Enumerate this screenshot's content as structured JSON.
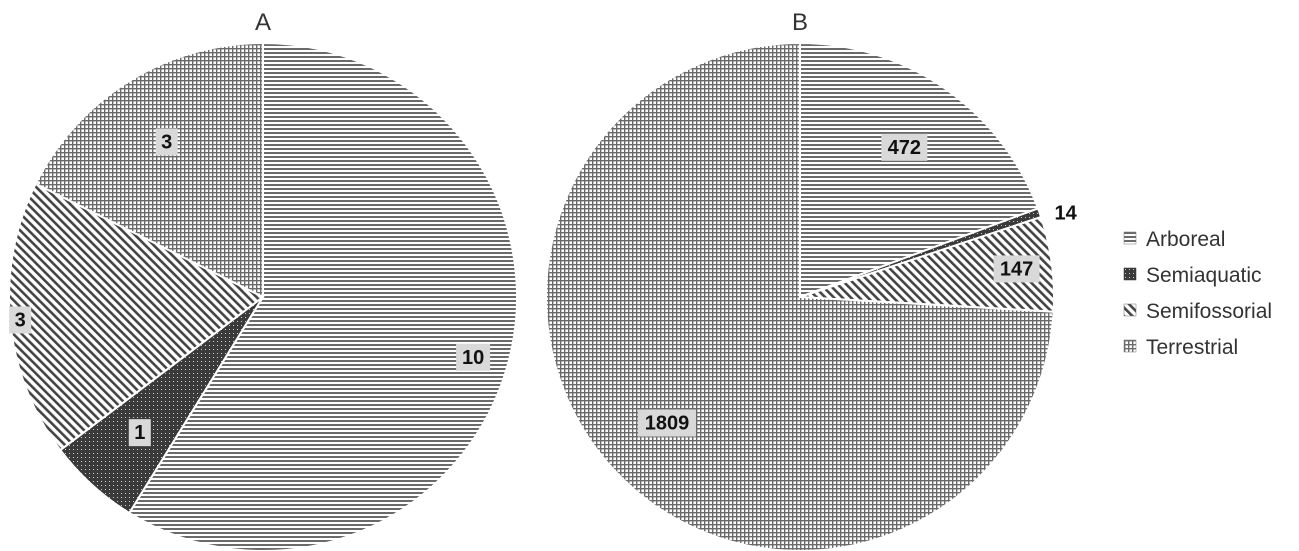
{
  "chart_data": [
    {
      "type": "pie",
      "title": "A",
      "categories": [
        "Arboreal",
        "Semiaquatic",
        "Semifossorial",
        "Terrestrial"
      ],
      "values": [
        10,
        1,
        3,
        3
      ],
      "data_labels": [
        "10",
        "1",
        "3",
        "3"
      ]
    },
    {
      "type": "pie",
      "title": "B",
      "categories": [
        "Arboreal",
        "Semiaquatic",
        "Semifossorial",
        "Terrestrial"
      ],
      "values": [
        472,
        14,
        147,
        1809
      ],
      "data_labels": [
        "472",
        "14",
        "147",
        "1809"
      ]
    }
  ],
  "legend": {
    "placement": "right",
    "items": [
      {
        "label": "Arboreal",
        "pattern": "horizontal-lines"
      },
      {
        "label": "Semiaquatic",
        "pattern": "dark-dotted"
      },
      {
        "label": "Semifossorial",
        "pattern": "diagonal-lines"
      },
      {
        "label": "Terrestrial",
        "pattern": "grid"
      }
    ]
  },
  "colors": {
    "pattern_ink": "#555555",
    "semiaquatic_fill": "#3a3a3a",
    "slice_border": "#ffffff",
    "label_box": "#d9d9d9"
  }
}
